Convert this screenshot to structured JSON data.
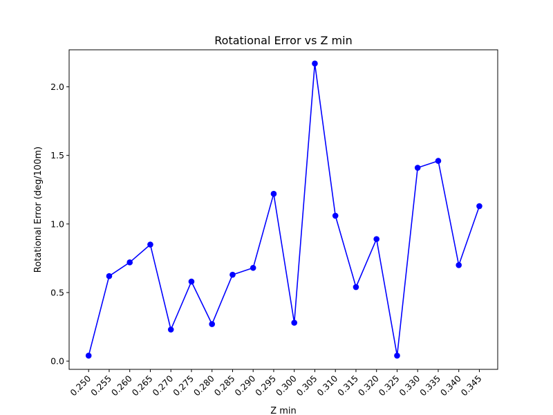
{
  "chart_data": {
    "type": "line",
    "title": "Rotational Error vs Z min",
    "xlabel": "Z min",
    "ylabel": "Rotational Error (deg/100m)",
    "ylim": [
      -0.06,
      2.27
    ],
    "yticks": [
      0.0,
      0.5,
      1.0,
      1.5,
      2.0
    ],
    "ytick_labels": [
      "0.0",
      "0.5",
      "1.0",
      "1.5",
      "2.0"
    ],
    "x": [
      "0.250",
      "0.255",
      "0.260",
      "0.265",
      "0.270",
      "0.275",
      "0.280",
      "0.285",
      "0.290",
      "0.295",
      "0.300",
      "0.305",
      "0.310",
      "0.315",
      "0.320",
      "0.325",
      "0.330",
      "0.335",
      "0.340",
      "0.345"
    ],
    "series": [
      {
        "values": [
          0.04,
          0.62,
          0.72,
          0.85,
          0.23,
          0.58,
          0.27,
          0.63,
          0.68,
          1.22,
          0.28,
          2.17,
          1.06,
          0.54,
          0.89,
          0.04,
          1.41,
          1.46,
          0.7,
          1.13
        ],
        "color": "#0000ff",
        "marker": "circle"
      }
    ],
    "grid": false,
    "legend": false
  }
}
